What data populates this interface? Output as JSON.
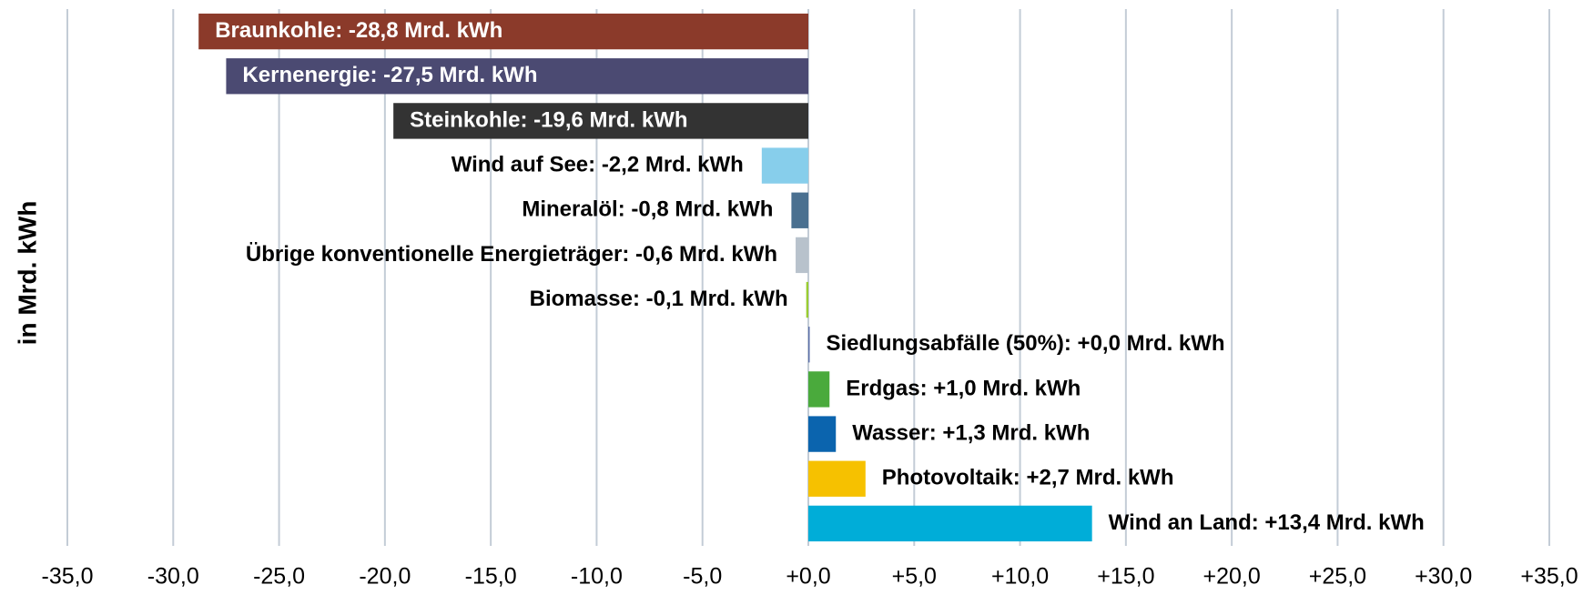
{
  "chart_data": {
    "type": "hbar",
    "y_label": "in Mrd. kWh",
    "values": [
      -28.8,
      -27.5,
      -19.6,
      -2.2,
      -0.8,
      -0.6,
      -0.1,
      0.0,
      1.0,
      1.3,
      2.7,
      13.4
    ],
    "value_labels": [
      "Braunkohle: -28,8 Mrd. kWh",
      "Kernenergie: -27,5 Mrd. kWh",
      "Steinkohle: -19,6 Mrd. kWh",
      "Wind auf See: -2,2 Mrd. kWh",
      "Mineralöl: -0,8 Mrd. kWh",
      "Übrige konventionelle Energieträger: -0,6 Mrd. kWh",
      "Biomasse: -0,1 Mrd. kWh",
      "Siedlungsabfälle (50%): +0,0 Mrd. kWh",
      "Erdgas: +1,0 Mrd. kWh",
      "Wasser: +1,3 Mrd. kWh",
      "Photovoltaik: +2,7 Mrd. kWh",
      "Wind an Land: +13,4 Mrd. kWh"
    ],
    "colors": [
      "#8b3a2a",
      "#4b4a72",
      "#333333",
      "#87ceeb",
      "#4a7090",
      "#b8c2cc",
      "#9acd32",
      "#5b6fa8",
      "#4aaa3c",
      "#0b64ae",
      "#f6c100",
      "#00add8"
    ],
    "xlim": [
      -35,
      35
    ],
    "xticks": [
      {
        "value": -35,
        "label": "-35,0"
      },
      {
        "value": -30,
        "label": "-30,0"
      },
      {
        "value": -25,
        "label": "-25,0"
      },
      {
        "value": -20,
        "label": "-20,0"
      },
      {
        "value": -15,
        "label": "-15,0"
      },
      {
        "value": -10,
        "label": "-10,0"
      },
      {
        "value": -5,
        "label": "-5,0"
      },
      {
        "value": 0,
        "label": "+0,0"
      },
      {
        "value": 5,
        "label": "+5,0"
      },
      {
        "value": 10,
        "label": "+10,0"
      },
      {
        "value": 15,
        "label": "+15,0"
      },
      {
        "value": 20,
        "label": "+20,0"
      },
      {
        "value": 25,
        "label": "+25,0"
      },
      {
        "value": 30,
        "label": "+30,0"
      },
      {
        "value": 35,
        "label": "+35,0"
      }
    ],
    "grid": true
  }
}
